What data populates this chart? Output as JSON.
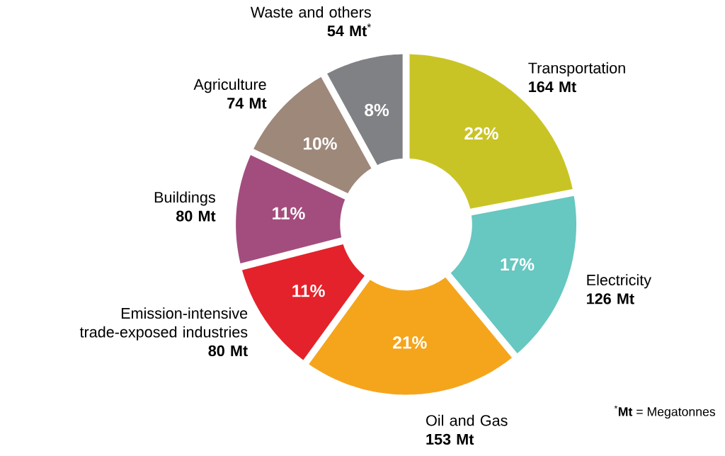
{
  "chart_data": {
    "type": "donut",
    "categories": [
      "Transportation\n**164 Mt**",
      "Electricity\n**126 Mt**",
      "Oil and Gas\n**153 Mt**",
      "Emission-intensive\ntrade-exposed industries\n**80 Mt**",
      "Buildings\n**80 Mt**",
      "Agriculture\n**74 Mt**",
      "Waste and others\n**54 Mt**$^{*}$"
    ],
    "values": [
      22,
      17,
      21,
      11,
      11,
      10,
      8
    ],
    "value_labels": [
      "22%",
      "17%",
      "21%",
      "11%",
      "11%",
      "10%",
      "8%"
    ],
    "colors": [
      "#c9c426",
      "#67c7c1",
      "#f5a51c",
      "#e4222b",
      "#a34d7e",
      "#9e887a",
      "#808184"
    ],
    "annotations": [
      "$^{*}$**Mt** = Megatonnes"
    ]
  }
}
